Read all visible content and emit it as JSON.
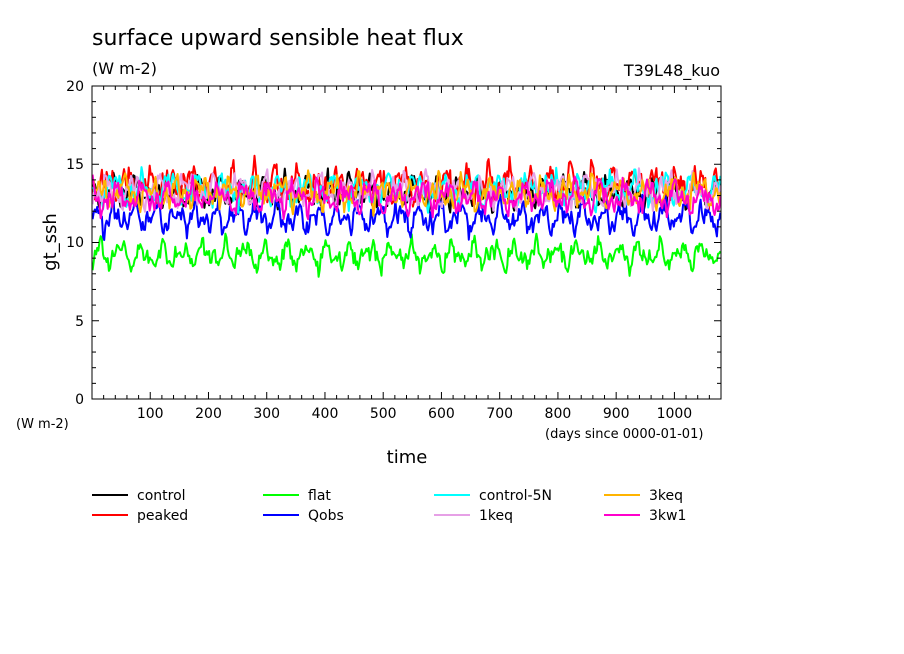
{
  "chart_data": {
    "type": "line",
    "title": "surface upward sensible heat flux",
    "subtitle": "(W m-2)",
    "experiment": "T39L48_kuo",
    "ylabel": "gt_ssh",
    "yunit": "(W m-2)",
    "xlabel": "time",
    "xunit": "(days since 0000-01-01)",
    "xlim": [
      0,
      1080
    ],
    "ylim": [
      0,
      20
    ],
    "xticks": [
      "100",
      "200",
      "300",
      "400",
      "500",
      "600",
      "700",
      "800",
      "900",
      "1000"
    ],
    "yticks": [
      "0",
      "5",
      "10",
      "15",
      "20"
    ],
    "grid": false,
    "legend_position": "bottom",
    "series": [
      {
        "name": "control",
        "color": "#000000",
        "mean": 13.2,
        "amplitude": 1.0,
        "min": 11.5,
        "max": 15.0
      },
      {
        "name": "peaked",
        "color": "#ff0000",
        "mean": 13.7,
        "amplitude": 1.2,
        "min": 11.8,
        "max": 15.9
      },
      {
        "name": "flat",
        "color": "#00ff00",
        "mean": 9.2,
        "amplitude": 0.9,
        "min": 7.2,
        "max": 10.7
      },
      {
        "name": "Qobs",
        "color": "#0000ff",
        "mean": 11.6,
        "amplitude": 1.0,
        "min": 9.6,
        "max": 13.3
      },
      {
        "name": "control-5N",
        "color": "#00ffff",
        "mean": 13.4,
        "amplitude": 1.0,
        "min": 11.8,
        "max": 15.8
      },
      {
        "name": "1keq",
        "color": "#e6a0e6",
        "mean": 13.3,
        "amplitude": 1.0,
        "min": 11.6,
        "max": 15.2
      },
      {
        "name": "3keq",
        "color": "#ffb400",
        "mean": 13.2,
        "amplitude": 1.0,
        "min": 11.5,
        "max": 15.8
      },
      {
        "name": "3kw1",
        "color": "#ff00cc",
        "mean": 12.9,
        "amplitude": 1.0,
        "min": 11.2,
        "max": 14.8
      }
    ]
  }
}
